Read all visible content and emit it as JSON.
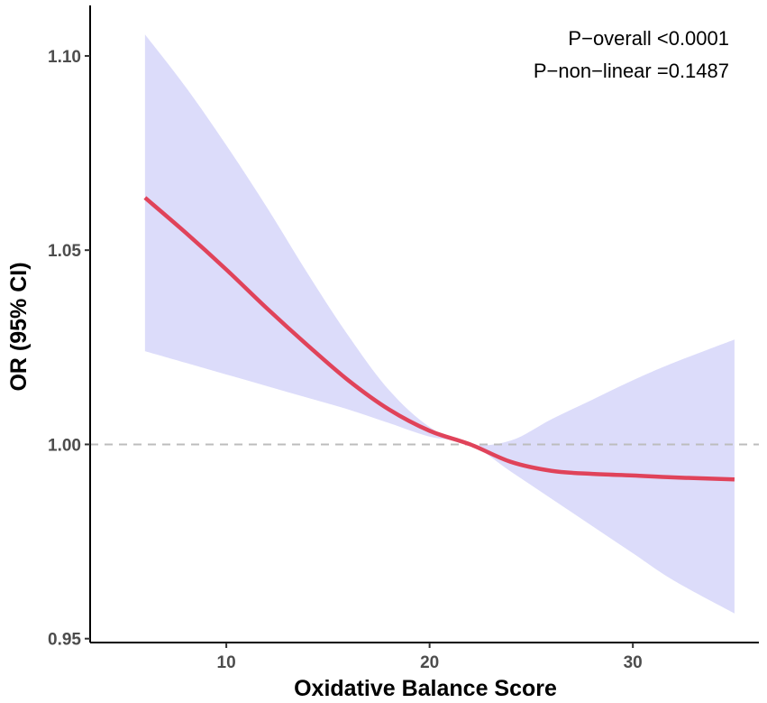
{
  "chart_data": {
    "type": "line",
    "title": "",
    "xlabel": "Oxidative Balance Score",
    "ylabel": "OR (95% CI)",
    "xlim": [
      3.3,
      36.2
    ],
    "ylim": [
      0.949,
      1.113
    ],
    "x_ticks": [
      {
        "value": 10,
        "label": "10"
      },
      {
        "value": 20,
        "label": "20"
      },
      {
        "value": 30,
        "label": "30"
      }
    ],
    "y_ticks": [
      {
        "value": 0.95,
        "label": "0.95"
      },
      {
        "value": 1.0,
        "label": "1.00"
      },
      {
        "value": 1.05,
        "label": "1.05"
      },
      {
        "value": 1.1,
        "label": "1.10"
      }
    ],
    "reference_line": {
      "y": 1.0,
      "style": "dashed",
      "color": "#bdbdbd"
    },
    "series": [
      {
        "name": "OR",
        "color": "#e0435a",
        "x": [
          6,
          8,
          10,
          12,
          14,
          16,
          18,
          20,
          22,
          24,
          26,
          28,
          30,
          32,
          35
        ],
        "y": [
          1.0635,
          1.0545,
          1.045,
          1.035,
          1.0255,
          1.0165,
          1.009,
          1.0035,
          1.0,
          0.9955,
          0.9932,
          0.9924,
          0.992,
          0.9915,
          0.991
        ],
        "ci_lower": [
          1.024,
          1.021,
          1.018,
          1.015,
          1.012,
          1.009,
          1.0055,
          1.002,
          1.0,
          0.993,
          0.986,
          0.979,
          0.972,
          0.965,
          0.9565
        ],
        "ci_upper": [
          1.1055,
          1.092,
          1.077,
          1.061,
          1.044,
          1.028,
          1.014,
          1.0045,
          1.0,
          1.001,
          1.0065,
          1.0115,
          1.0165,
          1.021,
          1.027
        ],
        "ci_color": "#dcdcfa"
      }
    ],
    "annotations": [
      "P−overall <0.0001",
      "P−non−linear =0.1487"
    ],
    "grid": false,
    "legend": "none"
  }
}
